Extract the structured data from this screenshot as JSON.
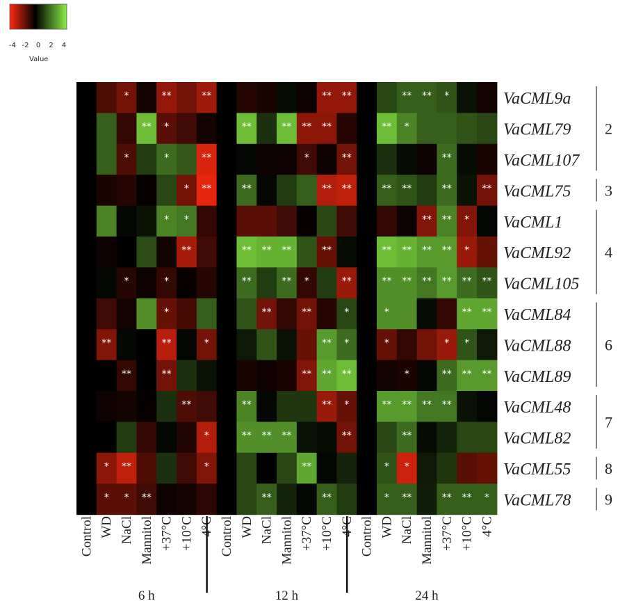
{
  "chart_data": {
    "type": "heatmap",
    "color_key": {
      "title": "Value",
      "ticks": [
        "-4",
        "-2",
        "0",
        "2",
        "4"
      ],
      "range": [
        -4,
        4
      ],
      "colors": {
        "low": "#ff2a10",
        "mid": "#000000",
        "high": "#88ee44"
      }
    },
    "time_points": [
      "6 h",
      "12 h",
      "24 h"
    ],
    "conditions": [
      "Control",
      "WD",
      "NaCl",
      "Mannitol",
      "+37°C",
      "+10°C",
      "4°C"
    ],
    "columns": [
      "Control",
      "WD",
      "NaCl",
      "Mannitol",
      "+37°C",
      "+10°C",
      "4°C",
      "Control",
      "WD",
      "NaCl",
      "Mannitol",
      "+37°C",
      "+10°C",
      "4°C",
      "Control",
      "WD",
      "NaCl",
      "Mannitol",
      "+37°C",
      "+10°C",
      "4°C"
    ],
    "genes": [
      "VaCML9a",
      "VaCML79",
      "VaCML107",
      "VaCML75",
      "VaCML1",
      "VaCML92",
      "VaCML105",
      "VaCML84",
      "VaCML88",
      "VaCML89",
      "VaCML48",
      "VaCML82",
      "VaCML55",
      "VaCML78"
    ],
    "groups": [
      {
        "label": "2",
        "first_row": 0,
        "last_row": 2
      },
      {
        "label": "3",
        "first_row": 3,
        "last_row": 3
      },
      {
        "label": "4",
        "first_row": 4,
        "last_row": 6
      },
      {
        "label": "6",
        "first_row": 7,
        "last_row": 9
      },
      {
        "label": "7",
        "first_row": 10,
        "last_row": 11
      },
      {
        "label": "8",
        "first_row": 12,
        "last_row": 12
      },
      {
        "label": "9",
        "first_row": 13,
        "last_row": 13
      }
    ],
    "values": [
      [
        0,
        -1.2,
        -1.8,
        -0.3,
        -2.3,
        -1.8,
        -2.5,
        0,
        -0.6,
        -0.4,
        0.2,
        -0.2,
        -2.3,
        -2.3,
        0,
        1.2,
        1.6,
        1.6,
        1.4,
        0.3,
        -0.3
      ],
      [
        0,
        1.6,
        -0.8,
        3.2,
        -1.4,
        -1.0,
        -0.3,
        0,
        3.2,
        0.8,
        3.2,
        -2.2,
        -2.2,
        -0.6,
        0,
        3.2,
        2.2,
        1.6,
        1.6,
        1.4,
        1.2
      ],
      [
        0,
        1.6,
        -1.2,
        1.0,
        1.8,
        1.5,
        -3.4,
        0,
        0.1,
        -0.2,
        -0.2,
        -1.0,
        -0.2,
        -1.8,
        0,
        0.8,
        0.2,
        -0.2,
        1.8,
        0.2,
        -0.4
      ],
      [
        0,
        -0.4,
        -0.6,
        -0.1,
        1.2,
        -1.8,
        -3.6,
        0,
        1.8,
        0.1,
        1.0,
        1.6,
        -2.8,
        -3.0,
        0,
        1.6,
        1.4,
        1.0,
        1.8,
        0.3,
        -1.8
      ],
      [
        0,
        2.2,
        0.1,
        0.3,
        2.2,
        2.0,
        -0.8,
        0,
        -1.4,
        -1.4,
        -1.0,
        -0.1,
        1.2,
        -1.0,
        0,
        -0.8,
        -0.2,
        -2.0,
        2.2,
        -2.0,
        0.1
      ],
      [
        0,
        -0.2,
        0.0,
        1.3,
        -0.3,
        -2.6,
        -1.0,
        0,
        3.2,
        3.0,
        3.0,
        1.4,
        -1.6,
        0.2,
        0,
        3.2,
        3.0,
        2.6,
        2.6,
        -2.4,
        -1.6
      ],
      [
        0,
        0.1,
        -0.6,
        -0.2,
        -0.8,
        -0.1,
        -0.6,
        0,
        1.8,
        1.0,
        1.8,
        -0.8,
        1.0,
        -2.4,
        0,
        2.4,
        2.4,
        2.0,
        2.6,
        1.8,
        1.4
      ],
      [
        0,
        -1.0,
        -0.3,
        2.4,
        -1.6,
        -1.1,
        1.6,
        0,
        1.4,
        -1.8,
        -0.8,
        -1.8,
        -0.6,
        1.2,
        0,
        2.4,
        2.4,
        0.2,
        -0.8,
        2.8,
        2.8
      ],
      [
        0,
        -2.0,
        0.1,
        0.0,
        -2.9,
        0.1,
        -1.8,
        0,
        0.4,
        1.4,
        0.3,
        -1.6,
        2.6,
        1.8,
        0,
        -1.6,
        -0.8,
        -1.8,
        -2.4,
        1.4,
        0.4
      ],
      [
        0,
        0.0,
        -0.8,
        0.0,
        -1.8,
        0.8,
        0.3,
        0,
        -0.4,
        -0.2,
        -0.4,
        -2.0,
        2.8,
        3.2,
        0,
        -0.3,
        -0.4,
        0.1,
        1.8,
        2.6,
        2.6
      ],
      [
        0,
        -0.2,
        -0.3,
        -0.1,
        0.8,
        -1.2,
        -1.0,
        0,
        2.2,
        0.1,
        0.9,
        0.9,
        -2.4,
        -1.6,
        0,
        2.6,
        2.6,
        2.0,
        2.0,
        0.3,
        0.1
      ],
      [
        0,
        0.0,
        1.0,
        -0.8,
        0.1,
        -0.5,
        -2.8,
        0,
        2.4,
        2.4,
        2.4,
        0.3,
        0.2,
        -1.8,
        0,
        1.2,
        1.8,
        0.2,
        0.6,
        1.2,
        1.2
      ],
      [
        0,
        -2.2,
        -3.0,
        -1.2,
        0.8,
        -1.0,
        -2.0,
        0,
        1.2,
        0.0,
        1.2,
        2.8,
        0.1,
        0.6,
        0,
        1.4,
        -3.2,
        0.4,
        0.9,
        -1.4,
        -1.6
      ],
      [
        0,
        -1.4,
        -1.4,
        -1.0,
        -0.2,
        -0.3,
        -0.7,
        0,
        1.2,
        1.6,
        0.6,
        0.1,
        1.6,
        1.0,
        0,
        1.6,
        1.6,
        0.5,
        1.6,
        1.6,
        1.6
      ]
    ],
    "significance": [
      [
        "",
        "",
        "*",
        "",
        "**",
        "",
        "**",
        "",
        "",
        "",
        "",
        "",
        "**",
        "**",
        "",
        "",
        "**",
        "**",
        "*",
        "",
        ""
      ],
      [
        "",
        "",
        "",
        "**",
        "*",
        "",
        "",
        "",
        "**",
        "",
        "**",
        "**",
        "**",
        "",
        "",
        "**",
        "*",
        "",
        "",
        "",
        ""
      ],
      [
        "",
        "",
        "*",
        "",
        "*",
        "",
        "**",
        "",
        "",
        "",
        "",
        "*",
        "",
        "**",
        "",
        "",
        "",
        "",
        "**",
        "",
        ""
      ],
      [
        "",
        "",
        "",
        "",
        "",
        "*",
        "**",
        "",
        "**",
        "",
        "",
        "",
        "**",
        "**",
        "",
        "**",
        "**",
        "",
        "**",
        "",
        "**"
      ],
      [
        "",
        "",
        "",
        "",
        "*",
        "*",
        "",
        "",
        "",
        "",
        "",
        "",
        "",
        "",
        "",
        "",
        "",
        "**",
        "**",
        "*",
        ""
      ],
      [
        "",
        "",
        "",
        "",
        "",
        "**",
        "",
        "",
        "**",
        "**",
        "**",
        "",
        "**",
        "",
        "",
        "**",
        "**",
        "**",
        "**",
        "*",
        ""
      ],
      [
        "",
        "",
        "*",
        "",
        "*",
        "",
        "",
        "",
        "**",
        "",
        "**",
        "*",
        "",
        "**",
        "",
        "**",
        "**",
        "**",
        "**",
        "**",
        "**"
      ],
      [
        "",
        "",
        "",
        "",
        "*",
        "",
        "",
        "",
        "",
        "**",
        "",
        "**",
        "",
        "*",
        "",
        "*",
        "",
        "",
        "",
        "**",
        "**"
      ],
      [
        "",
        "**",
        "",
        "",
        "**",
        "",
        "*",
        "",
        "",
        "",
        "",
        "",
        "**",
        "*",
        "",
        "*",
        "",
        "",
        "*",
        "*",
        ""
      ],
      [
        "",
        "",
        "**",
        "",
        "**",
        "",
        "",
        "",
        "",
        "",
        "",
        "**",
        "**",
        "**",
        "",
        "",
        "*",
        "",
        "**",
        "**",
        "**"
      ],
      [
        "",
        "",
        "",
        "",
        "",
        "**",
        "",
        "",
        "**",
        "",
        "",
        "",
        "**",
        "*",
        "",
        "**",
        "**",
        "**",
        "**",
        "",
        ""
      ],
      [
        "",
        "",
        "",
        "",
        "",
        "",
        "*",
        "",
        "**",
        "**",
        "**",
        "",
        "",
        "**",
        "",
        "",
        "**",
        "",
        "",
        "",
        ""
      ],
      [
        "",
        "*",
        "**",
        "",
        "",
        "",
        "*",
        "",
        "",
        "",
        "",
        "**",
        "",
        "",
        "",
        "*",
        "*",
        "",
        "",
        "",
        ""
      ],
      [
        "",
        "*",
        "*",
        "**",
        "",
        "",
        "",
        "",
        "",
        "**",
        "",
        "",
        "**",
        "",
        "",
        "*",
        "**",
        "",
        "**",
        "**",
        "*"
      ]
    ]
  }
}
